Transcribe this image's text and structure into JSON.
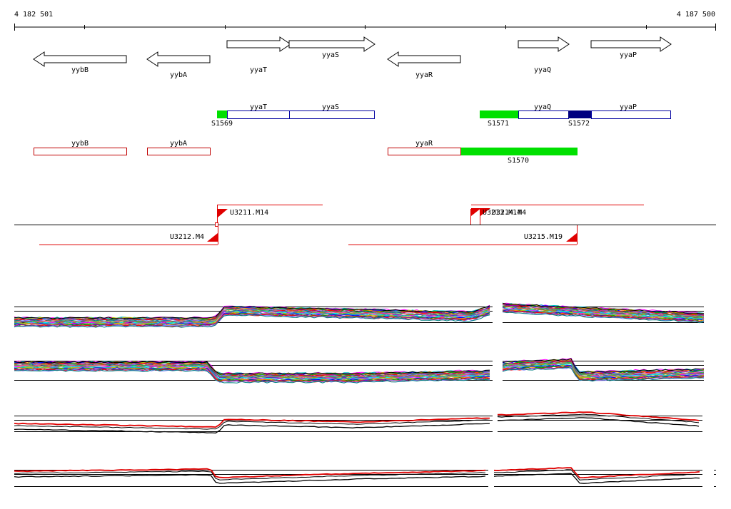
{
  "coordinates": {
    "start_label": "4 182 501",
    "end_label": "4 187 500"
  },
  "genes": [
    {
      "name": "yybB",
      "strand": "-"
    },
    {
      "name": "yybA",
      "strand": "-"
    },
    {
      "name": "yyaT",
      "strand": "+"
    },
    {
      "name": "yyaS",
      "strand": "+"
    },
    {
      "name": "yyaR",
      "strand": "-"
    },
    {
      "name": "yyaQ",
      "strand": "+"
    },
    {
      "name": "yyaP",
      "strand": "+"
    }
  ],
  "segments": {
    "plus_genes": [
      "yyaT",
      "yyaS",
      "yyaQ",
      "yyaP"
    ],
    "minus_genes": [
      "yybB",
      "yybA",
      "yyaR"
    ],
    "regions": [
      "S1569",
      "S1571",
      "S1572",
      "S1570"
    ]
  },
  "promoters": {
    "plus": [
      "U3211.M14",
      "U3214.M4"
    ],
    "overlap_label": "U3213.M14",
    "minus": [
      "U3212.M4",
      "U3215.M19"
    ]
  },
  "colors": {
    "plus_box": "#0000a0",
    "minus_box": "#c00000",
    "region_green": "#00e000",
    "region_navy": "#000080",
    "promoter_red": "#e00000",
    "trace_black": "#000000",
    "trace_red": "#e00000"
  },
  "expression_tracks": 4
}
